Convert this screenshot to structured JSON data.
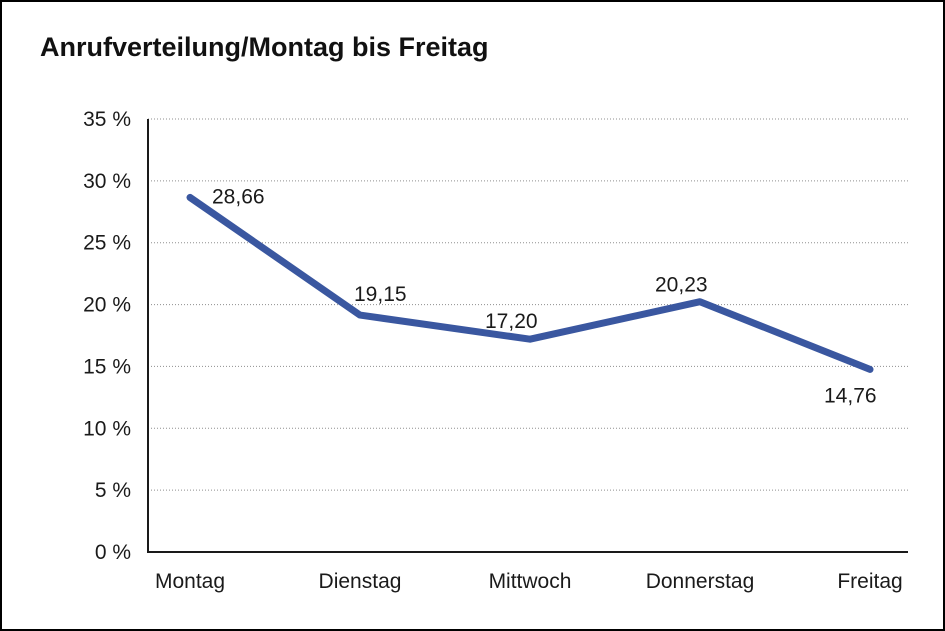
{
  "window": {
    "background_color": "#ffffff",
    "border_color": "#000000"
  },
  "chart_data": {
    "type": "line",
    "title": "Anrufverteilung/Montag bis Freitag",
    "categories": [
      "Montag",
      "Dienstag",
      "Mittwoch",
      "Donnerstag",
      "Freitag"
    ],
    "series": [
      {
        "name": "Anrufverteilung",
        "values": [
          28.66,
          19.15,
          17.2,
          20.23,
          14.76
        ]
      }
    ],
    "value_labels": [
      "28,66",
      "19,15",
      "17,20",
      "20,23",
      "14,76"
    ],
    "y_ticks": [
      {
        "label": "35 %",
        "value": 35
      },
      {
        "label": "30 %",
        "value": 30
      },
      {
        "label": "25 %",
        "value": 25
      },
      {
        "label": "20 %",
        "value": 20
      },
      {
        "label": "15 %",
        "value": 15
      },
      {
        "label": "10 %",
        "value": 10
      },
      {
        "label": "5 %",
        "value": 5
      },
      {
        "label": "0 %",
        "value": 0
      }
    ],
    "ylim": [
      0,
      35
    ],
    "xlabel": "",
    "ylabel": "",
    "legend": "none",
    "grid": "horizontal-dotted",
    "colors": {
      "line": "#3A57A0",
      "axis": "#1a1a1a",
      "gridline": "#8f8f8f",
      "text": "#1a1a1a"
    }
  }
}
